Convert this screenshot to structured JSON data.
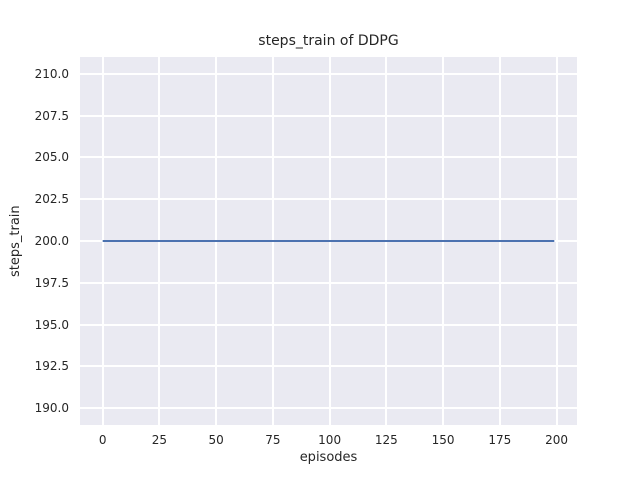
{
  "figure": {
    "background": "#ffffff",
    "plot_background": "#eaeaf2",
    "grid_color": "#ffffff",
    "text_color": "#262626"
  },
  "chart_data": {
    "type": "line",
    "title": "steps_train of DDPG",
    "xlabel": "episodes",
    "ylabel": "steps_train",
    "xlim": [
      -10,
      209
    ],
    "ylim": [
      189,
      211
    ],
    "xticks": [
      0,
      25,
      50,
      75,
      100,
      125,
      150,
      175,
      200
    ],
    "xtick_labels": [
      "0",
      "25",
      "50",
      "75",
      "100",
      "125",
      "150",
      "175",
      "200"
    ],
    "yticks": [
      210.0,
      207.5,
      205.0,
      202.5,
      200.0,
      197.5,
      195.0,
      192.5,
      190.0
    ],
    "ytick_labels": [
      "210.0",
      "207.5",
      "205.0",
      "202.5",
      "200.0",
      "197.5",
      "195.0",
      "192.5",
      "190.0"
    ],
    "grid": true,
    "legend": null,
    "series": [
      {
        "name": "steps_train",
        "color": "#4c72b0",
        "line_width": 2,
        "x": [
          0,
          199
        ],
        "y": [
          200,
          200
        ]
      }
    ]
  }
}
